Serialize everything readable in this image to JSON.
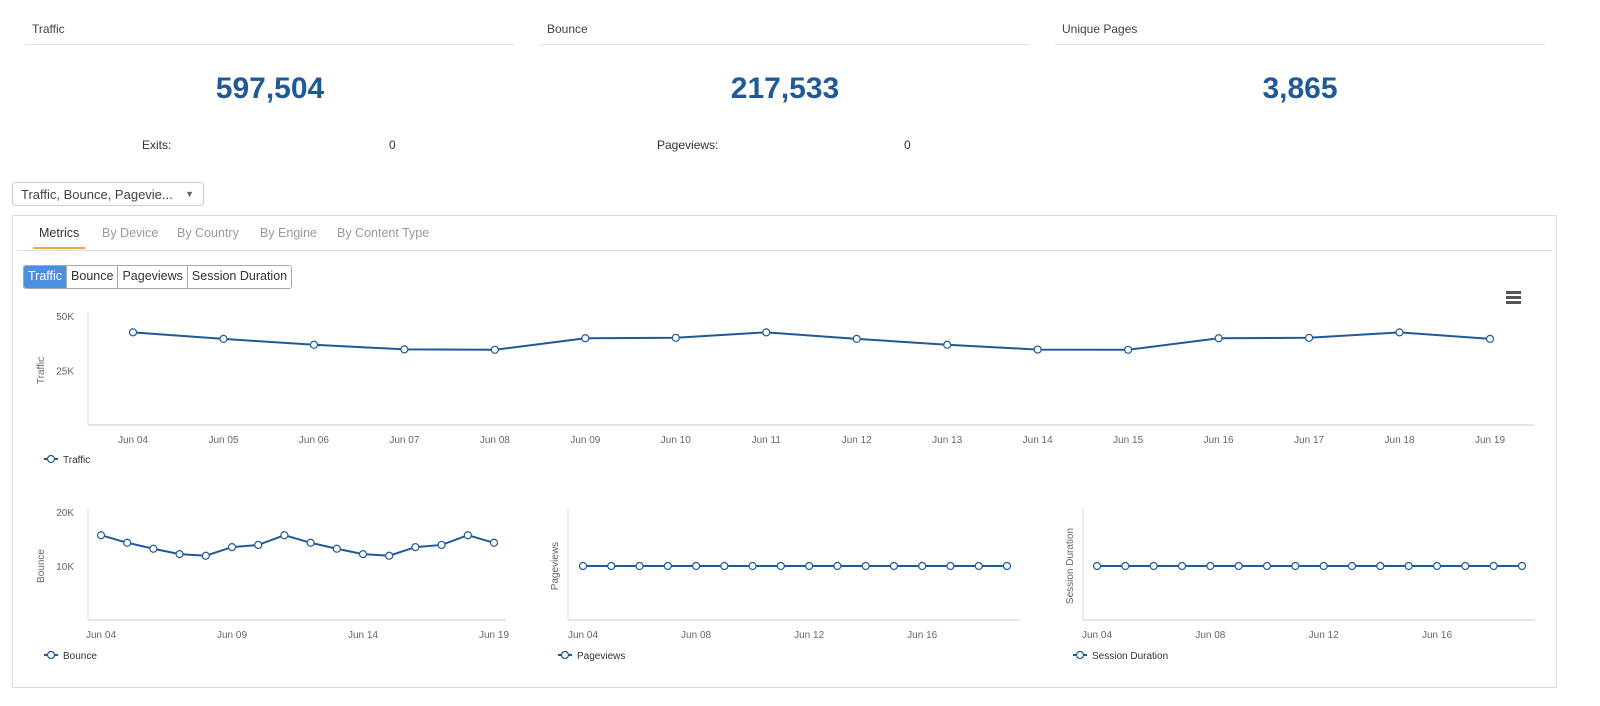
{
  "kpis": [
    {
      "title": "Traffic",
      "value": "597,504",
      "sub_label": "Exits:",
      "sub_value": "0"
    },
    {
      "title": "Bounce",
      "value": "217,533",
      "sub_label": "Pageviews:",
      "sub_value": "0"
    },
    {
      "title": "Unique Pages",
      "value": "3,865"
    }
  ],
  "filter": {
    "selected": "Traffic, Bounce, Pagevie..."
  },
  "tabs": [
    "Metrics",
    "By Device",
    "By Country",
    "By Engine",
    "By Content Type"
  ],
  "metric_buttons": [
    "Traffic",
    "Bounce",
    "Pageviews",
    "Session Duration"
  ],
  "colors": {
    "series": "#1f5a97",
    "accent_tab": "#f0a53a",
    "active_button": "#4a90e2",
    "kpi_value": "#1f5a97"
  },
  "chart_data": [
    {
      "type": "line",
      "ylabel": "Traffic",
      "ylim": [
        0,
        50000
      ],
      "yticks": [
        "50K",
        "25K"
      ],
      "x": [
        "Jun 04",
        "Jun 05",
        "Jun 06",
        "Jun 07",
        "Jun 08",
        "Jun 09",
        "Jun 10",
        "Jun 11",
        "Jun 12",
        "Jun 13",
        "Jun 14",
        "Jun 15",
        "Jun 16",
        "Jun 17",
        "Jun 18",
        "Jun 19"
      ],
      "series": [
        {
          "name": "Traffic",
          "values": [
            42500,
            39500,
            36800,
            34700,
            34500,
            39800,
            40000,
            42500,
            39500,
            36800,
            34600,
            34500,
            39800,
            40000,
            42500,
            39500
          ]
        }
      ]
    },
    {
      "type": "line",
      "ylabel": "Bounce",
      "ylim": [
        0,
        20000
      ],
      "yticks": [
        "20K",
        "10K"
      ],
      "xticks": [
        "Jun 04",
        "Jun 09",
        "Jun 14",
        "Jun 19"
      ],
      "series": [
        {
          "name": "Bounce",
          "values": [
            15700,
            14300,
            13200,
            12200,
            11900,
            13500,
            13900,
            15700,
            14300,
            13200,
            12200,
            11900,
            13500,
            13900,
            15700,
            14300
          ]
        }
      ]
    },
    {
      "type": "line",
      "ylabel": "Pageviews",
      "xticks": [
        "Jun 04",
        "Jun 08",
        "Jun 12",
        "Jun 16"
      ],
      "series": [
        {
          "name": "Pageviews",
          "values": [
            0,
            0,
            0,
            0,
            0,
            0,
            0,
            0,
            0,
            0,
            0,
            0,
            0,
            0,
            0,
            0
          ]
        }
      ]
    },
    {
      "type": "line",
      "ylabel": "Session Duration",
      "xticks": [
        "Jun 04",
        "Jun 08",
        "Jun 12",
        "Jun 16"
      ],
      "series": [
        {
          "name": "Session Duration",
          "values": [
            0,
            0,
            0,
            0,
            0,
            0,
            0,
            0,
            0,
            0,
            0,
            0,
            0,
            0,
            0,
            0
          ]
        }
      ]
    }
  ]
}
